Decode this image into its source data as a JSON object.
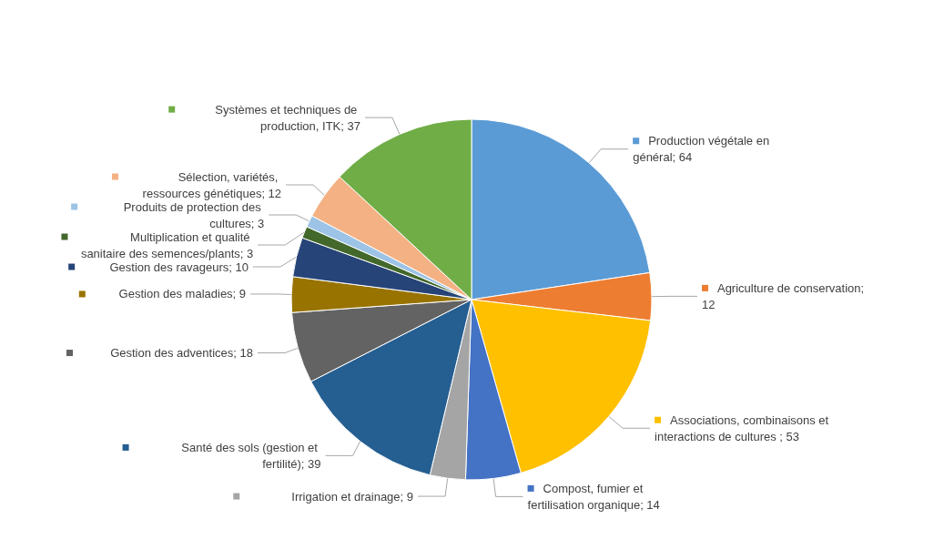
{
  "chart_data": {
    "type": "pie",
    "categories": [
      "Production végétale en général; 64",
      "Agriculture de conservation; 12",
      "Associations, combinaisons et interactions de cultures ; 53",
      "Compost, fumier et fertilisation organique; 14",
      "Irrigation et drainage; 9",
      "Santé des sols (gestion et fertilité); 39",
      "Gestion des adventices; 18",
      "Gestion des maladies; 9",
      "Gestion des ravageurs; 10",
      "Multiplication et qualité sanitaire des semences/plants; 3",
      "Produits de protection des cultures; 3",
      "Sélection, variétés, ressources génétiques; 12",
      "Systèmes et techniques de production, ITK; 37"
    ],
    "values": [
      64,
      12,
      53,
      14,
      9,
      39,
      18,
      9,
      10,
      3,
      3,
      12,
      37
    ],
    "colors": [
      "#5b9bd5",
      "#ed7d31",
      "#ffc000",
      "#4472c4",
      "#a5a5a5",
      "#255e91",
      "#636363",
      "#997300",
      "#264478",
      "#43682b",
      "#9dc3e6",
      "#f4b183",
      "#70ad47"
    ],
    "legend": "right"
  }
}
